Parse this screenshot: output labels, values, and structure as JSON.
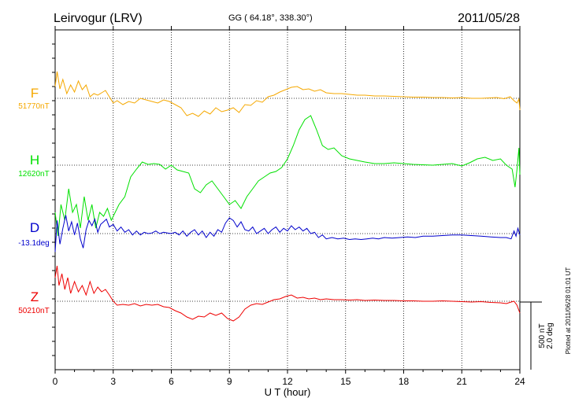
{
  "header": {
    "station": "Leirvogur (LRV)",
    "coords": "GG ( 64.18°, 338.30°)",
    "date": "2011/05/28"
  },
  "footer": {
    "plotted_at": "Plotted at 2011/06/28 01:01  UT"
  },
  "scale": {
    "nt": "500 nT",
    "deg": "2.0 deg"
  },
  "colors": {
    "F": "#f5a800",
    "H": "#00e000",
    "D": "#0000cc",
    "Z": "#ee0000"
  },
  "chart_data": {
    "type": "line",
    "xlabel": "U T (hour)",
    "xlim": [
      0,
      24
    ],
    "xticks": [
      "0",
      "3",
      "6",
      "9",
      "12",
      "15",
      "18",
      "21",
      "24"
    ],
    "grid": true,
    "series": [
      {
        "name": "F",
        "baseline_label": "51770nT",
        "color": "#f5a800",
        "x": [
          0,
          0.1,
          0.25,
          0.4,
          0.6,
          0.8,
          1.0,
          1.2,
          1.4,
          1.6,
          1.8,
          2.0,
          2.2,
          2.4,
          2.6,
          2.8,
          3.0,
          3.2,
          3.5,
          3.8,
          4.1,
          4.4,
          4.7,
          5.0,
          5.3,
          5.6,
          5.9,
          6.2,
          6.5,
          6.8,
          7.1,
          7.4,
          7.7,
          8.0,
          8.3,
          8.6,
          8.9,
          9.2,
          9.5,
          9.8,
          10.1,
          10.4,
          10.7,
          11.0,
          11.3,
          11.6,
          11.9,
          12.2,
          12.5,
          12.8,
          13.1,
          13.4,
          13.7,
          14.0,
          14.4,
          14.8,
          15.2,
          15.6,
          16.0,
          16.5,
          17.0,
          17.5,
          18.0,
          18.5,
          19.0,
          19.5,
          20.0,
          20.5,
          21.0,
          21.5,
          22.0,
          22.4,
          22.8,
          23.2,
          23.5,
          23.7,
          23.85,
          23.95,
          24.0
        ],
        "y": [
          150,
          340,
          120,
          240,
          60,
          170,
          80,
          220,
          110,
          170,
          20,
          60,
          40,
          70,
          100,
          20,
          -60,
          -30,
          -80,
          -40,
          -60,
          0,
          -20,
          -40,
          -60,
          -20,
          -40,
          -80,
          -120,
          -220,
          -190,
          -230,
          -160,
          -200,
          -120,
          -170,
          -150,
          -120,
          -180,
          -80,
          -90,
          -30,
          -50,
          20,
          40,
          80,
          110,
          140,
          150,
          110,
          120,
          90,
          110,
          70,
          60,
          60,
          50,
          40,
          40,
          30,
          30,
          25,
          20,
          15,
          15,
          10,
          10,
          5,
          10,
          0,
          0,
          5,
          10,
          -5,
          20,
          -30,
          -60,
          -10,
          -150
        ],
        "scale": 0.1
      },
      {
        "name": "H",
        "baseline_label": "12620nT",
        "color": "#00e000",
        "x": [
          0,
          0.15,
          0.3,
          0.5,
          0.7,
          0.9,
          1.1,
          1.3,
          1.5,
          1.7,
          1.9,
          2.1,
          2.3,
          2.5,
          2.7,
          2.9,
          3.1,
          3.3,
          3.6,
          3.9,
          4.2,
          4.5,
          4.8,
          5.1,
          5.4,
          5.7,
          6.0,
          6.3,
          6.6,
          6.9,
          7.2,
          7.5,
          7.8,
          8.1,
          8.4,
          8.7,
          9.0,
          9.3,
          9.6,
          9.9,
          10.2,
          10.5,
          10.8,
          11.1,
          11.4,
          11.7,
          12.0,
          12.3,
          12.6,
          12.9,
          13.2,
          13.5,
          13.8,
          14.1,
          14.4,
          14.8,
          15.2,
          15.6,
          16.0,
          16.5,
          17.0,
          17.5,
          18.0,
          18.5,
          19.0,
          19.5,
          20.0,
          20.5,
          21.0,
          21.4,
          21.8,
          22.2,
          22.6,
          23.0,
          23.3,
          23.6,
          23.75,
          23.85,
          23.95,
          24.0
        ],
        "y": [
          -600,
          -900,
          -500,
          -700,
          -300,
          -600,
          -500,
          -800,
          -400,
          -700,
          -500,
          -800,
          -600,
          -650,
          -550,
          -700,
          -600,
          -500,
          -400,
          -150,
          -50,
          40,
          10,
          20,
          10,
          -50,
          0,
          -60,
          -80,
          -100,
          -300,
          -350,
          -250,
          -200,
          -300,
          -400,
          -500,
          -450,
          -550,
          -400,
          -300,
          -200,
          -150,
          -100,
          -80,
          -30,
          80,
          250,
          450,
          580,
          630,
          450,
          250,
          200,
          220,
          120,
          80,
          60,
          40,
          20,
          20,
          30,
          20,
          10,
          5,
          0,
          10,
          20,
          -10,
          30,
          80,
          100,
          60,
          80,
          0,
          -50,
          -280,
          -60,
          220,
          -120
        ],
        "scale": 0.1
      },
      {
        "name": "D",
        "baseline_label": "-13.1deg",
        "color": "#0000cc",
        "x": [
          0,
          0.1,
          0.25,
          0.4,
          0.55,
          0.7,
          0.85,
          1.0,
          1.15,
          1.3,
          1.45,
          1.6,
          1.75,
          1.9,
          2.05,
          2.2,
          2.35,
          2.5,
          2.65,
          2.8,
          3.0,
          3.2,
          3.4,
          3.6,
          3.8,
          4.0,
          4.2,
          4.4,
          4.6,
          4.8,
          5.0,
          5.2,
          5.4,
          5.6,
          5.8,
          6.0,
          6.2,
          6.4,
          6.6,
          6.8,
          7.0,
          7.2,
          7.4,
          7.6,
          7.8,
          8.0,
          8.2,
          8.4,
          8.6,
          8.8,
          9.0,
          9.2,
          9.4,
          9.6,
          9.8,
          10.0,
          10.2,
          10.4,
          10.6,
          10.8,
          11.0,
          11.2,
          11.4,
          11.6,
          11.8,
          12.0,
          12.2,
          12.4,
          12.6,
          12.8,
          13.0,
          13.2,
          13.4,
          13.6,
          13.8,
          14.0,
          14.3,
          14.6,
          14.9,
          15.2,
          15.5,
          15.8,
          16.1,
          16.4,
          16.7,
          17.0,
          17.4,
          17.8,
          18.2,
          18.6,
          19.0,
          19.5,
          20.0,
          20.5,
          21.0,
          21.5,
          22.0,
          22.5,
          23.0,
          23.3,
          23.55,
          23.7,
          23.8,
          23.9,
          24.0
        ],
        "y": [
          -1.4,
          1.0,
          -0.8,
          0.4,
          1.4,
          0.2,
          0.9,
          -0.1,
          0.8,
          -0.4,
          -1.1,
          0.3,
          1.0,
          0.6,
          1.1,
          0.1,
          0.7,
          0.9,
          1.1,
          0.5,
          0.7,
          0.2,
          0.5,
          0.1,
          0.3,
          -0.1,
          0.2,
          -0.1,
          0.1,
          0.0,
          0.05,
          0.2,
          0.0,
          0.1,
          0.05,
          0.0,
          0.1,
          -0.1,
          0.2,
          -0.2,
          0.1,
          0.3,
          -0.1,
          0.2,
          -0.3,
          0.1,
          -0.2,
          0.3,
          0.1,
          0.8,
          1.2,
          1.0,
          0.5,
          0.9,
          0.3,
          0.2,
          0.5,
          0.0,
          0.2,
          0.4,
          0.0,
          0.3,
          0.5,
          0.1,
          0.4,
          0.2,
          0.6,
          0.3,
          0.5,
          0.2,
          0.4,
          0.0,
          0.1,
          -0.3,
          -0.1,
          -0.4,
          -0.3,
          -0.4,
          -0.35,
          -0.45,
          -0.4,
          -0.45,
          -0.4,
          -0.35,
          -0.4,
          -0.3,
          -0.35,
          -0.3,
          -0.25,
          -0.3,
          -0.2,
          -0.2,
          -0.15,
          -0.1,
          -0.1,
          -0.15,
          -0.2,
          -0.25,
          -0.3,
          -0.3,
          -0.4,
          0.2,
          -0.2,
          0.4,
          -0.1
        ],
        "scale": 16.7
      },
      {
        "name": "Z",
        "baseline_label": "50210nT",
        "color": "#ee0000",
        "x": [
          0,
          0.1,
          0.2,
          0.35,
          0.5,
          0.65,
          0.8,
          1.0,
          1.2,
          1.4,
          1.6,
          1.8,
          2.0,
          2.2,
          2.4,
          2.6,
          2.8,
          3.0,
          3.2,
          3.5,
          3.8,
          4.1,
          4.4,
          4.7,
          5.0,
          5.3,
          5.6,
          5.9,
          6.2,
          6.5,
          6.8,
          7.1,
          7.4,
          7.7,
          8.0,
          8.3,
          8.6,
          8.9,
          9.2,
          9.5,
          9.8,
          10.1,
          10.4,
          10.7,
          11.0,
          11.3,
          11.6,
          11.9,
          12.2,
          12.5,
          12.8,
          13.1,
          13.4,
          13.7,
          14.0,
          14.4,
          14.8,
          15.2,
          15.6,
          16.0,
          16.5,
          17.0,
          17.5,
          18.0,
          18.5,
          19.0,
          19.5,
          20.0,
          20.5,
          21.0,
          21.5,
          22.0,
          22.5,
          23.0,
          23.3,
          23.55,
          23.7,
          23.85,
          24.0
        ],
        "y": [
          300,
          450,
          200,
          350,
          150,
          300,
          100,
          250,
          120,
          200,
          80,
          250,
          100,
          180,
          120,
          150,
          80,
          0,
          -50,
          -40,
          -50,
          -30,
          -60,
          -40,
          -50,
          -40,
          -70,
          -80,
          -120,
          -150,
          -200,
          -230,
          -190,
          -200,
          -150,
          -180,
          -150,
          -220,
          -250,
          -200,
          -100,
          -50,
          -30,
          -40,
          -10,
          20,
          30,
          60,
          80,
          40,
          50,
          30,
          40,
          20,
          30,
          20,
          20,
          15,
          20,
          10,
          15,
          10,
          10,
          5,
          5,
          0,
          0,
          5,
          0,
          -5,
          -10,
          -5,
          -15,
          -20,
          -30,
          -10,
          0,
          -50,
          -150
        ],
        "scale": 0.1
      }
    ]
  }
}
